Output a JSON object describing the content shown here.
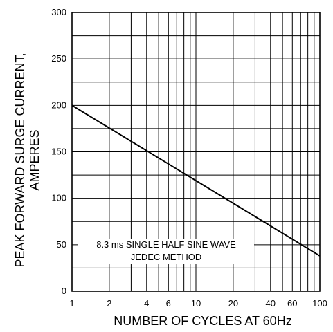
{
  "chart_data": {
    "type": "line",
    "title": "",
    "xlabel": "NUMBER OF CYCLES AT 60Hz",
    "ylabel_line1": "PEAK FORWARD SURGE CURRENT,",
    "ylabel_line2": "AMPERES",
    "x_scale": "log",
    "xlim": [
      1,
      100
    ],
    "ylim": [
      0,
      300
    ],
    "x_ticks": [
      1,
      2,
      4,
      6,
      10,
      20,
      40,
      60,
      100
    ],
    "x_tick_labels": [
      "1",
      "2",
      "4",
      "6",
      "10",
      "20",
      "40",
      "60",
      "100"
    ],
    "x_gridlines": [
      1,
      2,
      3,
      4,
      5,
      6,
      7,
      8,
      9,
      10,
      20,
      30,
      40,
      50,
      60,
      70,
      80,
      90,
      100
    ],
    "y_ticks": [
      0,
      50,
      100,
      150,
      200,
      250,
      300
    ],
    "y_tick_labels": [
      "0",
      "50",
      "100",
      "150",
      "200",
      "250",
      "300"
    ],
    "y_gridline_step": 25,
    "grid": true,
    "series": [
      {
        "x": [
          1,
          100
        ],
        "y": [
          200,
          38
        ]
      }
    ],
    "annotation_line1": "8.3 ms SINGLE HALF SINE WAVE",
    "annotation_line2": "JEDEC METHOD"
  }
}
